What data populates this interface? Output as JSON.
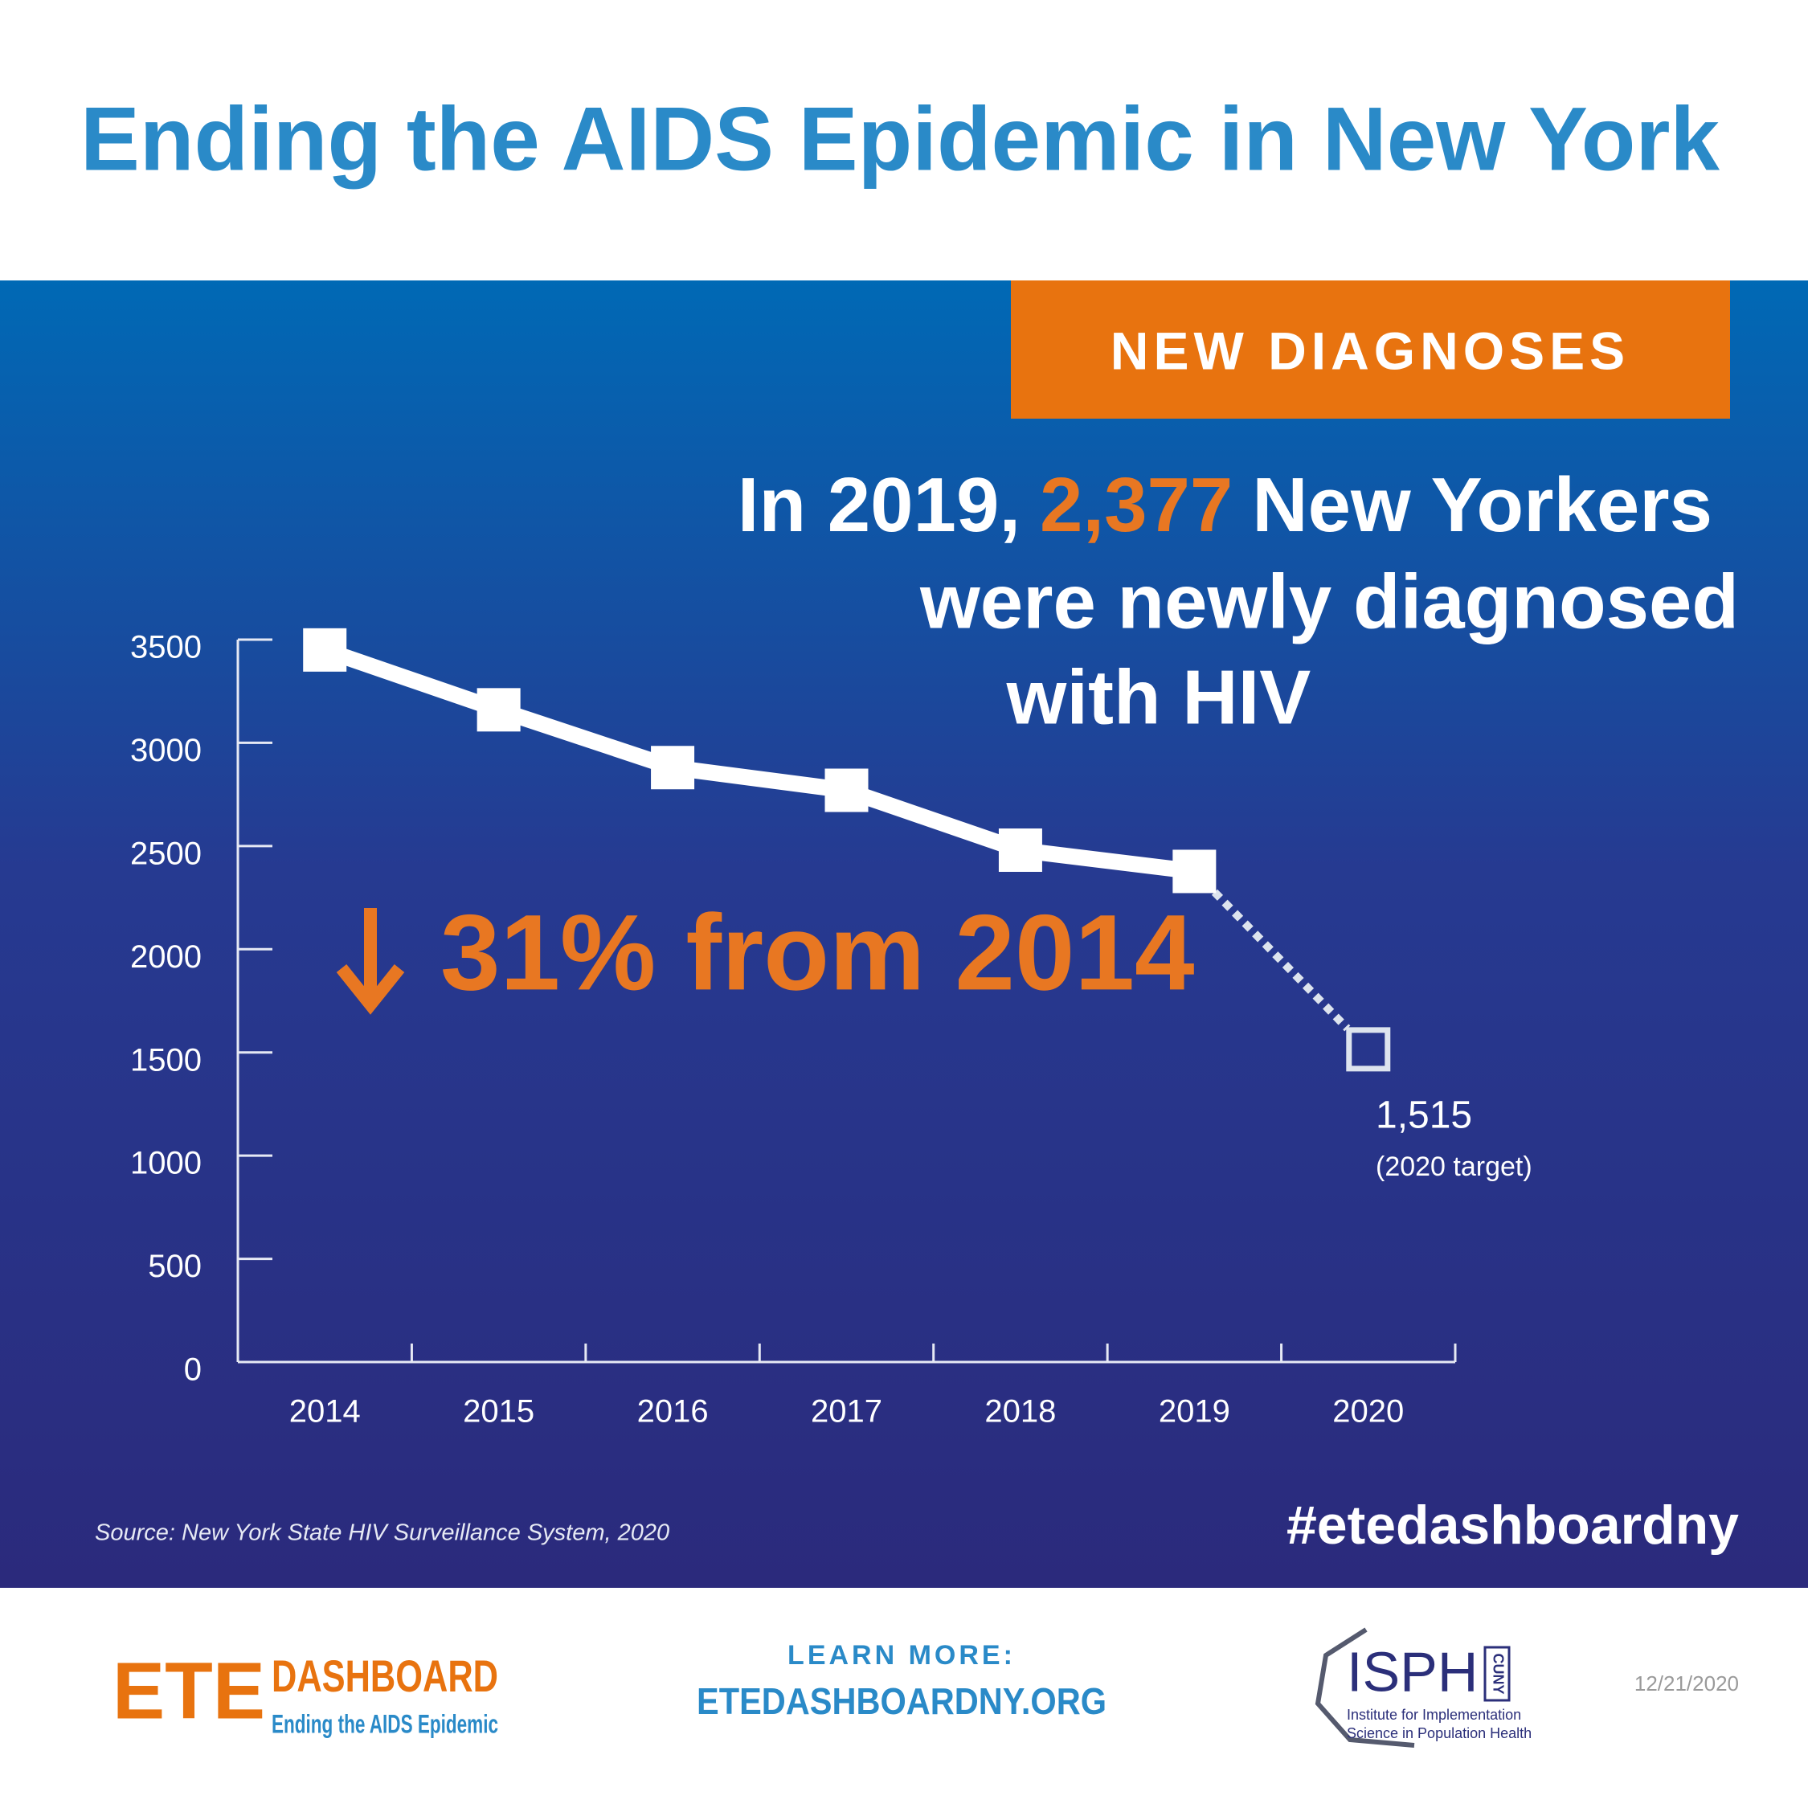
{
  "title": "Ending the AIDS Epidemic in New York",
  "badge": "NEW DIAGNOSES",
  "headline": {
    "line1": [
      "In 2019,",
      "2,377",
      "New Yorkers"
    ],
    "line2": "were newly diagnosed",
    "line3": "with HIV"
  },
  "chart_data": {
    "type": "line",
    "categories": [
      "2014",
      "2015",
      "2016",
      "2017",
      "2018",
      "2019",
      "2020"
    ],
    "series": [
      {
        "color": "#ffffff",
        "values": [
          3450,
          3160,
          2880,
          2770,
          2480,
          2377,
          null
        ]
      },
      {
        "color": "#dde4ee",
        "values": [
          null,
          null,
          null,
          null,
          null,
          null,
          1515
        ],
        "value_labels": [
          null,
          null,
          null,
          null,
          null,
          null,
          "1,515"
        ]
      }
    ],
    "target_note": "(2020 target)",
    "annotation": "31% from 2014",
    "annotation_color": "#e87722",
    "ylim": [
      0,
      3500
    ],
    "yticks": [
      0,
      500,
      1000,
      1500,
      2000,
      2500,
      3000,
      3500
    ]
  },
  "source": "Source: New York State HIV Surveillance System, 2020",
  "hashtag": "#etedashboardny",
  "footer": {
    "logo": {
      "ete": "ETE",
      "dashboard": "DASHBOARD",
      "tagline": "Ending the AIDS Epidemic"
    },
    "learn_more": "LEARN MORE:",
    "url": "ETEDASHBOARDNY.ORG",
    "isph": {
      "name": "ISPH",
      "cuny": "CUNY",
      "line1": "Institute for Implementation",
      "line2": "Science in Population Health"
    },
    "date": "12/21/2020"
  }
}
